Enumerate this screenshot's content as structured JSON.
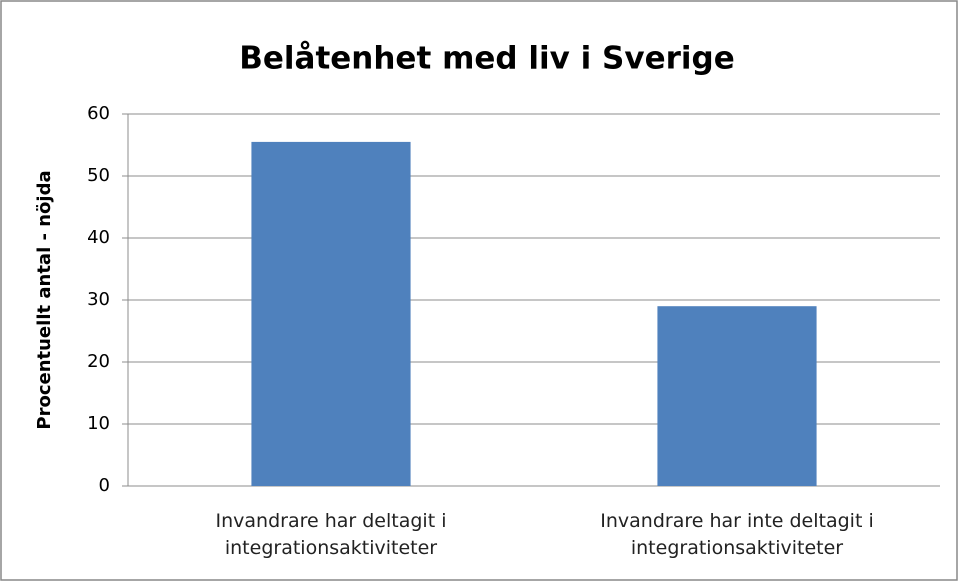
{
  "chart_data": {
    "type": "bar",
    "title": "Belåtenhet med liv i Sverige",
    "y_label": "Procentuellt antal - nöjda",
    "categories": [
      "Invandrare har deltagit i integrationsaktiviteter",
      "Invandrare har inte deltagit i integrationsaktiviteter"
    ],
    "values": [
      55.5,
      29
    ],
    "color": "#4f81bd",
    "ylim": [
      0,
      60
    ],
    "yticks": [
      0,
      10,
      20,
      30,
      40,
      50,
      60
    ],
    "grid": true
  }
}
